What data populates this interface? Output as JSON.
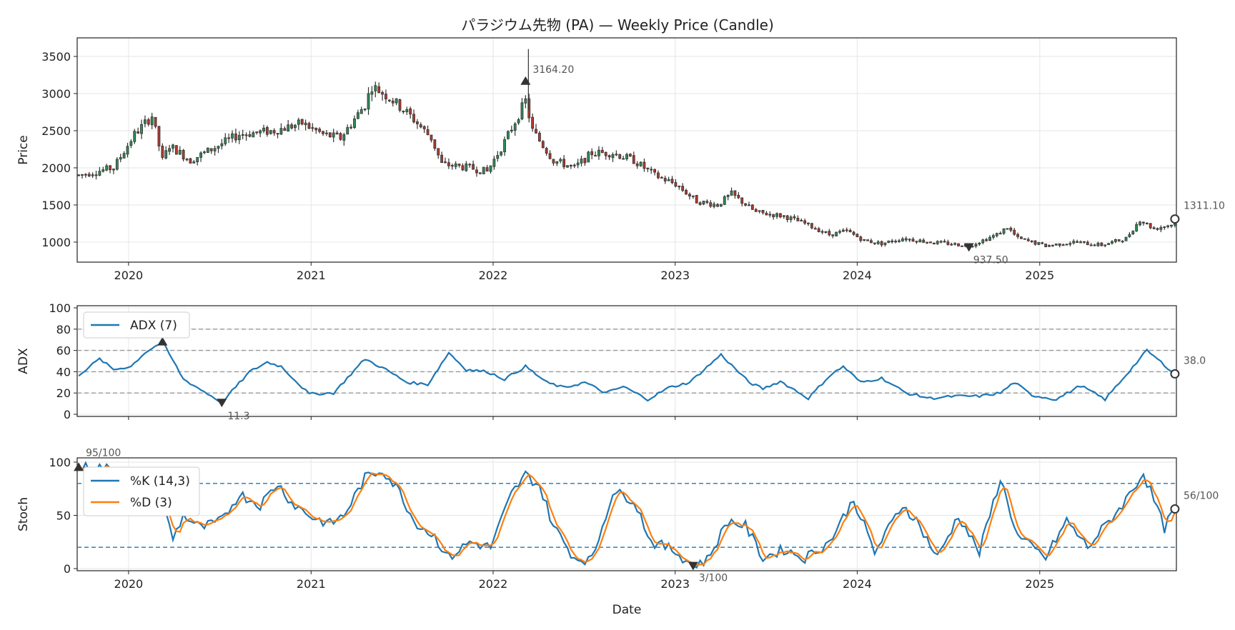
{
  "chart_data": {
    "type": "candlestick",
    "title": "パラジウム先物 (PA) — Weekly Price (Candle)",
    "xlabel": "Date",
    "x_ticks": [
      "2020",
      "2021",
      "2022",
      "2023",
      "2024",
      "2025"
    ],
    "x_range": [
      "2019-09-23",
      "2025-09-29"
    ],
    "colors": {
      "up": "#2e8b57",
      "down": "#b03a2e",
      "wick": "#333333",
      "adx": "#1f77b4",
      "k": "#1f77b4",
      "d": "#ff7f0e",
      "ref": "#999999",
      "stoch_ref": "#1f77b4",
      "grid": "#e6e6e6",
      "marker": "#333333"
    },
    "panels": {
      "price": {
        "ylabel": "Price",
        "ylim": [
          730,
          3750
        ],
        "yticks": [
          "1000",
          "1500",
          "2000",
          "2500",
          "3000",
          "3500"
        ],
        "high_annotation": {
          "date": "2022-03-07",
          "value": 3164.2,
          "label": "3164.20"
        },
        "low_annotation": {
          "date": "2024-08-12",
          "value": 937.5,
          "label": "937.50"
        },
        "last_annotation": {
          "date": "2025-09-29",
          "value": 1311.1,
          "label": "1311.10"
        },
        "anchors": [
          [
            "2019-09-23",
            1900
          ],
          [
            "2019-12-02",
            2000
          ],
          [
            "2020-01-13",
            2450
          ],
          [
            "2020-02-17",
            2700
          ],
          [
            "2020-03-09",
            2100
          ],
          [
            "2020-03-23",
            2300
          ],
          [
            "2020-05-04",
            2100
          ],
          [
            "2020-06-15",
            2250
          ],
          [
            "2020-08-10",
            2450
          ],
          [
            "2020-10-19",
            2500
          ],
          [
            "2020-12-14",
            2600
          ],
          [
            "2021-01-25",
            2450
          ],
          [
            "2021-03-01",
            2400
          ],
          [
            "2021-04-19",
            2850
          ],
          [
            "2021-05-03",
            3100
          ],
          [
            "2021-06-07",
            2950
          ],
          [
            "2021-07-19",
            2700
          ],
          [
            "2021-08-30",
            2400
          ],
          [
            "2021-09-20",
            2050
          ],
          [
            "2021-11-15",
            2000
          ],
          [
            "2021-12-20",
            1950
          ],
          [
            "2022-01-24",
            2350
          ],
          [
            "2022-03-07",
            2900
          ],
          [
            "2022-03-21",
            2500
          ],
          [
            "2022-05-02",
            2100
          ],
          [
            "2022-06-13",
            2000
          ],
          [
            "2022-07-18",
            2200
          ],
          [
            "2022-08-29",
            2200
          ],
          [
            "2022-10-10",
            2100
          ],
          [
            "2022-11-21",
            1900
          ],
          [
            "2023-01-02",
            1780
          ],
          [
            "2023-02-13",
            1550
          ],
          [
            "2023-03-27",
            1500
          ],
          [
            "2023-04-24",
            1650
          ],
          [
            "2023-06-12",
            1400
          ],
          [
            "2023-08-07",
            1350
          ],
          [
            "2023-09-18",
            1250
          ],
          [
            "2023-11-06",
            1100
          ],
          [
            "2023-12-11",
            1150
          ],
          [
            "2024-01-15",
            1020
          ],
          [
            "2024-02-19",
            980
          ],
          [
            "2024-04-01",
            1050
          ],
          [
            "2024-05-27",
            1000
          ],
          [
            "2024-07-01",
            980
          ],
          [
            "2024-08-12",
            950
          ],
          [
            "2024-10-07",
            1100
          ],
          [
            "2024-10-28",
            1200
          ],
          [
            "2024-11-18",
            1050
          ],
          [
            "2025-01-13",
            950
          ],
          [
            "2025-03-10",
            1000
          ],
          [
            "2025-05-05",
            960
          ],
          [
            "2025-06-23",
            1050
          ],
          [
            "2025-07-21",
            1300
          ],
          [
            "2025-08-18",
            1180
          ],
          [
            "2025-09-29",
            1250
          ]
        ]
      },
      "adx": {
        "ylabel": "ADX",
        "ylim": [
          -2,
          102
        ],
        "yticks": [
          "0",
          "20",
          "40",
          "60",
          "80",
          "100"
        ],
        "ref_lines": [
          20,
          40,
          60,
          80
        ],
        "legend": "ADX (7)",
        "high_annotation": {
          "date": "2020-03-09",
          "value": 68
        },
        "low_annotation": {
          "date": "2020-07-06",
          "value": 11.3,
          "label": "11.3"
        },
        "last_annotation": {
          "date": "2025-09-29",
          "value": 38.0,
          "label": "38.0"
        },
        "anchors": [
          [
            "2019-09-23",
            37
          ],
          [
            "2019-11-04",
            52
          ],
          [
            "2019-12-02",
            42
          ],
          [
            "2020-01-06",
            45
          ],
          [
            "2020-02-03",
            58
          ],
          [
            "2020-03-09",
            68
          ],
          [
            "2020-04-20",
            33
          ],
          [
            "2020-07-06",
            11.3
          ],
          [
            "2020-08-31",
            40
          ],
          [
            "2020-10-05",
            49
          ],
          [
            "2020-11-02",
            45
          ],
          [
            "2020-12-28",
            19
          ],
          [
            "2021-02-15",
            20
          ],
          [
            "2021-04-19",
            52
          ],
          [
            "2021-05-31",
            42
          ],
          [
            "2021-07-12",
            30
          ],
          [
            "2021-08-23",
            28
          ],
          [
            "2021-10-04",
            58
          ],
          [
            "2021-11-08",
            42
          ],
          [
            "2021-12-20",
            40
          ],
          [
            "2022-01-24",
            33
          ],
          [
            "2022-03-07",
            45
          ],
          [
            "2022-04-18",
            30
          ],
          [
            "2022-05-23",
            25
          ],
          [
            "2022-07-04",
            30
          ],
          [
            "2022-08-15",
            20
          ],
          [
            "2022-09-19",
            26
          ],
          [
            "2022-11-07",
            14
          ],
          [
            "2022-12-19",
            25
          ],
          [
            "2023-01-30",
            30
          ],
          [
            "2023-04-03",
            56
          ],
          [
            "2023-05-29",
            30
          ],
          [
            "2023-06-26",
            24
          ],
          [
            "2023-07-31",
            31
          ],
          [
            "2023-09-25",
            15
          ],
          [
            "2023-11-06",
            36
          ],
          [
            "2023-12-04",
            45
          ],
          [
            "2024-01-08",
            30
          ],
          [
            "2024-02-19",
            34
          ],
          [
            "2024-04-08",
            20
          ],
          [
            "2024-05-27",
            15
          ],
          [
            "2024-07-15",
            17
          ],
          [
            "2024-09-02",
            17
          ],
          [
            "2024-10-14",
            20
          ],
          [
            "2024-11-11",
            30
          ],
          [
            "2024-12-16",
            18
          ],
          [
            "2025-02-03",
            14
          ],
          [
            "2025-03-24",
            27
          ],
          [
            "2025-05-12",
            14
          ],
          [
            "2025-08-04",
            60
          ],
          [
            "2025-09-29",
            38
          ]
        ]
      },
      "stoch": {
        "ylabel": "Stoch",
        "ylim": [
          -2,
          104
        ],
        "yticks": [
          "0",
          "50",
          "100"
        ],
        "ref_lines": [
          20,
          80
        ],
        "legend": [
          "%K (14,3)",
          "%D (3)"
        ],
        "high_annotation": {
          "date": "2019-09-23",
          "value": 95,
          "label": "95/100"
        },
        "low_annotation": {
          "date": "2023-02-06",
          "value": 3,
          "label": "3/100"
        },
        "last_annotation": {
          "date": "2025-09-29",
          "value": 56,
          "label": "56/100"
        },
        "k_anchors": [
          [
            "2019-09-23",
            95
          ],
          [
            "2019-11-11",
            95
          ],
          [
            "2020-01-13",
            85
          ],
          [
            "2020-03-02",
            72
          ],
          [
            "2020-03-30",
            28
          ],
          [
            "2020-04-20",
            50
          ],
          [
            "2020-05-25",
            38
          ],
          [
            "2020-07-06",
            45
          ],
          [
            "2020-08-10",
            70
          ],
          [
            "2020-09-21",
            60
          ],
          [
            "2020-10-26",
            80
          ],
          [
            "2020-11-23",
            62
          ],
          [
            "2021-01-04",
            48
          ],
          [
            "2021-02-08",
            42
          ],
          [
            "2021-03-08",
            50
          ],
          [
            "2021-04-19",
            85
          ],
          [
            "2021-05-24",
            93
          ],
          [
            "2021-06-28",
            72
          ],
          [
            "2021-07-26",
            45
          ],
          [
            "2021-09-06",
            30
          ],
          [
            "2021-10-04",
            10
          ],
          [
            "2021-11-15",
            25
          ],
          [
            "2021-12-27",
            20
          ],
          [
            "2022-02-07",
            70
          ],
          [
            "2022-03-07",
            88
          ],
          [
            "2022-04-04",
            78
          ],
          [
            "2022-05-02",
            40
          ],
          [
            "2022-06-13",
            10
          ],
          [
            "2022-07-18",
            8
          ],
          [
            "2022-08-29",
            72
          ],
          [
            "2022-10-10",
            65
          ],
          [
            "2022-11-14",
            25
          ],
          [
            "2022-12-26",
            18
          ],
          [
            "2023-02-06",
            3
          ],
          [
            "2023-03-06",
            8
          ],
          [
            "2023-04-17",
            45
          ],
          [
            "2023-05-22",
            40
          ],
          [
            "2023-06-26",
            10
          ],
          [
            "2023-08-07",
            18
          ],
          [
            "2023-09-18",
            10
          ],
          [
            "2023-11-06",
            25
          ],
          [
            "2023-12-25",
            65
          ],
          [
            "2024-02-05",
            15
          ],
          [
            "2024-04-01",
            60
          ],
          [
            "2024-04-29",
            45
          ],
          [
            "2024-06-10",
            10
          ],
          [
            "2024-07-22",
            50
          ],
          [
            "2024-09-02",
            15
          ],
          [
            "2024-10-14",
            85
          ],
          [
            "2024-11-18",
            30
          ],
          [
            "2025-01-13",
            10
          ],
          [
            "2025-02-24",
            45
          ],
          [
            "2025-04-07",
            20
          ],
          [
            "2025-05-12",
            40
          ],
          [
            "2025-06-16",
            60
          ],
          [
            "2025-07-28",
            90
          ],
          [
            "2025-09-08",
            38
          ],
          [
            "2025-09-29",
            56
          ]
        ]
      }
    }
  }
}
